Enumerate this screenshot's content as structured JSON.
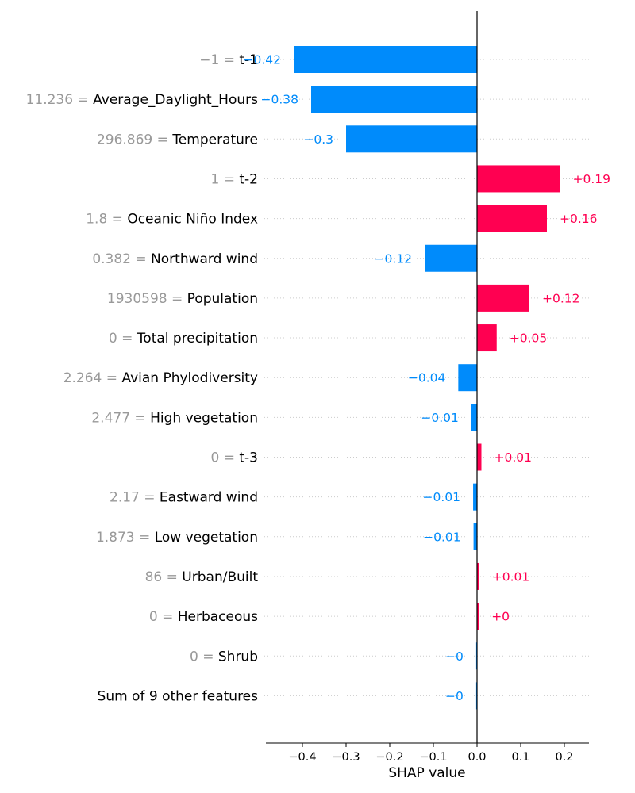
{
  "chart_data": {
    "type": "bar",
    "orientation": "horizontal",
    "chart_kind": "shap-waterfall-bar",
    "xlabel": "SHAP value",
    "xlim": [
      -0.48,
      0.25
    ],
    "xticks": [
      -0.4,
      -0.3,
      -0.2,
      -0.1,
      0.0,
      0.1,
      0.2
    ],
    "xtick_labels": [
      "−0.4",
      "−0.3",
      "−0.2",
      "−0.1",
      "0.0",
      "0.1",
      "0.2"
    ],
    "grid": "horizontal dotted",
    "colors": {
      "positive": "#ff0051",
      "negative": "#008bfb",
      "value_text": "#999999"
    },
    "features": [
      {
        "value_text": "−1 = ",
        "name": "t-1",
        "shap": -0.42,
        "label": "−0.42"
      },
      {
        "value_text": "11.236 = ",
        "name": "Average_Daylight_Hours",
        "shap": -0.38,
        "label": "−0.38"
      },
      {
        "value_text": "296.869 = ",
        "name": "Temperature",
        "shap": -0.3,
        "label": "−0.3"
      },
      {
        "value_text": "1 = ",
        "name": "t-2",
        "shap": 0.19,
        "label": "+0.19"
      },
      {
        "value_text": "1.8 = ",
        "name": "Oceanic Niño Index",
        "shap": 0.16,
        "label": "+0.16"
      },
      {
        "value_text": "0.382 = ",
        "name": "Northward wind",
        "shap": -0.12,
        "label": "−0.12"
      },
      {
        "value_text": "1930598 = ",
        "name": "Population",
        "shap": 0.12,
        "label": "+0.12"
      },
      {
        "value_text": "0 = ",
        "name": "Total precipitation",
        "shap": 0.045,
        "label": "+0.05"
      },
      {
        "value_text": "2.264 = ",
        "name": "Avian Phylodiversity",
        "shap": -0.043,
        "label": "−0.04"
      },
      {
        "value_text": "2.477 = ",
        "name": "High vegetation",
        "shap": -0.013,
        "label": "−0.01"
      },
      {
        "value_text": "0 = ",
        "name": "t-3",
        "shap": 0.01,
        "label": "+0.01"
      },
      {
        "value_text": "2.17 = ",
        "name": "Eastward wind",
        "shap": -0.009,
        "label": "−0.01"
      },
      {
        "value_text": "1.873 = ",
        "name": "Low vegetation",
        "shap": -0.008,
        "label": "−0.01"
      },
      {
        "value_text": "86 = ",
        "name": "Urban/Built",
        "shap": 0.005,
        "label": "+0.01"
      },
      {
        "value_text": "0 = ",
        "name": "Herbaceous",
        "shap": 0.004,
        "label": "+0"
      },
      {
        "value_text": "0 = ",
        "name": "Shrub",
        "shap": -0.002,
        "label": "−0"
      },
      {
        "value_text": "",
        "name": "Sum of 9 other features",
        "shap": -0.002,
        "label": "−0"
      }
    ]
  }
}
